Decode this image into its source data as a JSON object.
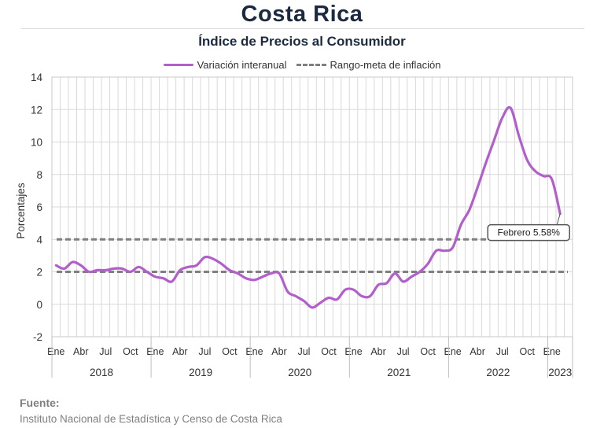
{
  "header": {
    "title": "Costa Rica",
    "subtitle": "Índice de Precios al Consumidor"
  },
  "legend": {
    "series_label": "Variación interanual",
    "target_label": "Rango-meta de inflación"
  },
  "source": {
    "heading": "Fuente:",
    "text": "Instituto Nacional de Estadística y Censo de Costa Rica"
  },
  "colors": {
    "series": "#b25fcc",
    "target": "#7f7f7f",
    "grid": "#d9d9d9"
  },
  "chart_data": {
    "type": "line",
    "title": "Índice de Precios al Consumidor",
    "ylabel": "Porcentajes",
    "xlabel": "",
    "ylim": [
      -2,
      14
    ],
    "yticks": [
      -2,
      0,
      2,
      4,
      6,
      8,
      10,
      12,
      14
    ],
    "grid": true,
    "legend_position": "top",
    "x_start": "2018-01",
    "month_tick_labels": [
      "Ene",
      "Abr",
      "Jul",
      "Oct"
    ],
    "year_labels": [
      "2018",
      "2019",
      "2020",
      "2021",
      "2022",
      "2023"
    ],
    "series": [
      {
        "name": "Variación interanual",
        "values": [
          2.4,
          2.2,
          2.6,
          2.4,
          2.0,
          2.1,
          2.1,
          2.2,
          2.2,
          2.0,
          2.3,
          2.0,
          1.7,
          1.6,
          1.4,
          2.1,
          2.3,
          2.4,
          2.9,
          2.8,
          2.5,
          2.1,
          1.9,
          1.6,
          1.5,
          1.7,
          1.9,
          1.9,
          0.8,
          0.5,
          0.2,
          -0.2,
          0.1,
          0.4,
          0.3,
          0.9,
          0.9,
          0.5,
          0.5,
          1.2,
          1.3,
          1.9,
          1.4,
          1.7,
          2.0,
          2.5,
          3.3,
          3.3,
          3.5,
          4.9,
          5.8,
          7.2,
          8.7,
          10.1,
          11.5,
          12.1,
          10.4,
          8.9,
          8.2,
          7.9,
          7.7,
          5.58
        ]
      },
      {
        "name": "Rango-meta de inflación",
        "upper": 4,
        "lower": 2
      }
    ],
    "annotation": {
      "text": "Febrero 5.58%",
      "x": "2023-02",
      "y": 5.58
    }
  }
}
